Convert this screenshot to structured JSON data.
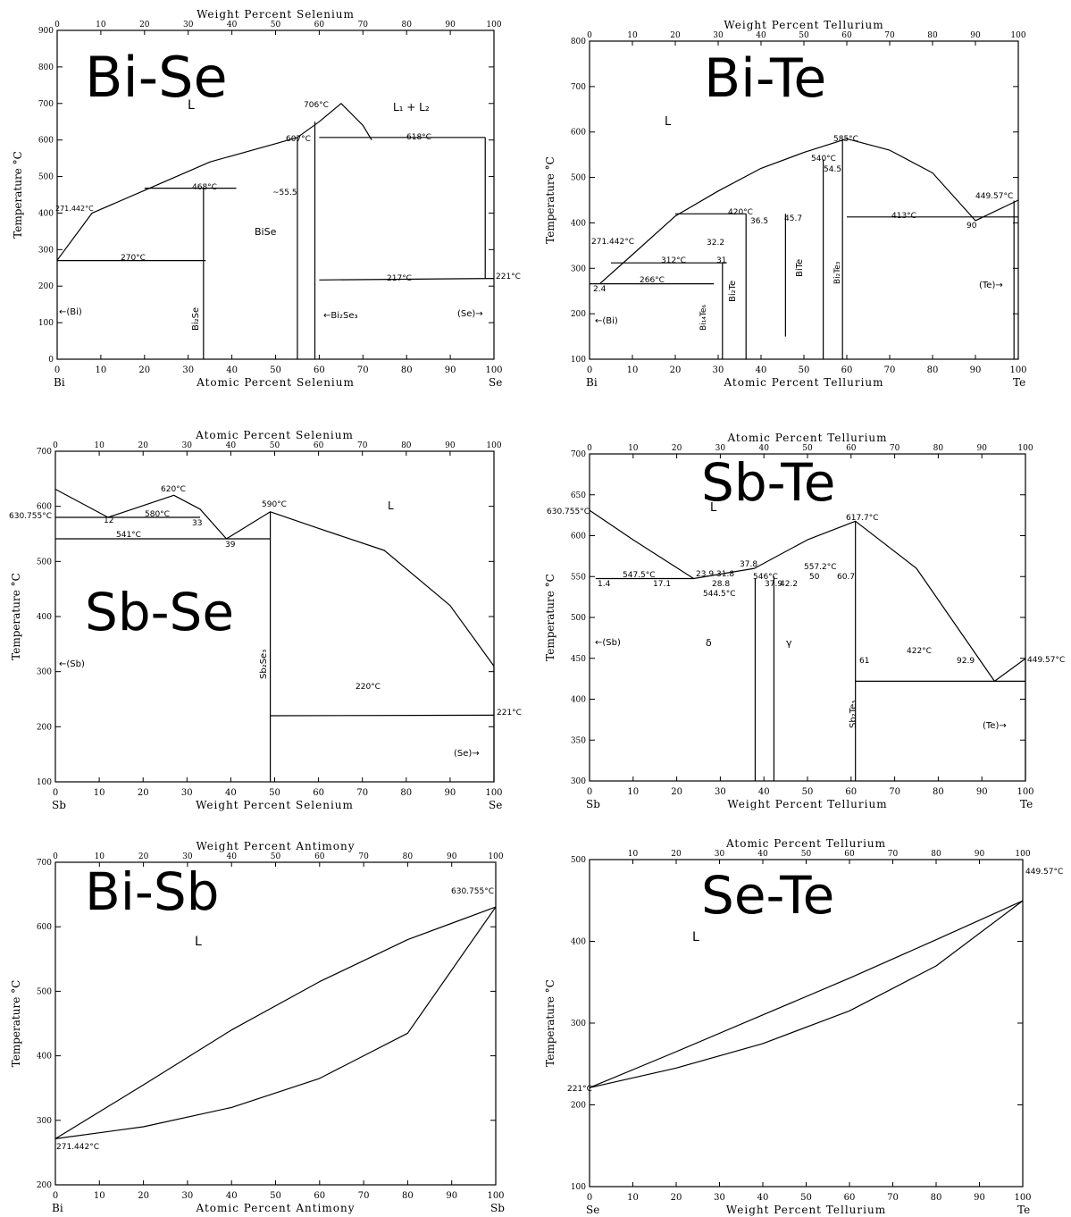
{
  "charts": [
    {
      "id": "bise",
      "title": "Bi-Se",
      "bottom_axis": {
        "label": "Atomic Percent Selenium",
        "ticks": [
          "0",
          "10",
          "20",
          "30",
          "40",
          "50",
          "60",
          "70",
          "80",
          "90",
          "100"
        ]
      },
      "top_axis": {
        "label": "Weight Percent Selenium",
        "ticks": [
          "0",
          "10",
          "20",
          "30",
          "40",
          "50",
          "60",
          "70",
          "80",
          "90",
          "100"
        ]
      },
      "y_label": "Temperature °C",
      "y_ticks": [
        "0",
        "100",
        "200",
        "300",
        "400",
        "500",
        "600",
        "700",
        "800",
        "900"
      ],
      "left_element": "Bi",
      "right_element": "Se",
      "annotations": [
        "L",
        "L₁ + L₂",
        "706°C",
        "607°C",
        "618°C",
        "468°C",
        "~55.5",
        "271.442°C",
        "270°C",
        "217°C",
        "221°C",
        "BiSe",
        "Bi₂Se",
        "←Bi₂Se₃",
        "(Se)→",
        "←(Bi)"
      ]
    },
    {
      "id": "bite",
      "title": "Bi-Te",
      "bottom_axis": {
        "label": "Atomic Percent Tellurium",
        "ticks": [
          "0",
          "10",
          "20",
          "30",
          "40",
          "50",
          "60",
          "70",
          "80",
          "90",
          "100"
        ]
      },
      "top_axis": {
        "label": "Weight Percent Tellurium",
        "ticks": [
          "0",
          "10",
          "20",
          "30",
          "40",
          "50",
          "60",
          "70",
          "80",
          "90",
          "100"
        ]
      },
      "y_label": "Temperature °C",
      "y_ticks": [
        "100",
        "200",
        "300",
        "400",
        "500",
        "600",
        "700",
        "800"
      ],
      "left_element": "Bi",
      "right_element": "Te",
      "annotations": [
        "L",
        "585°C",
        "540°C",
        "54.5",
        "420°C",
        "36.5",
        "45.7",
        "413°C",
        "90",
        "449.57°C",
        "271.442°C",
        "312°C",
        "32.2",
        "31",
        "266°C",
        "2.4",
        "BiTe",
        "Bi₂Te₃",
        "Bi₂Te",
        "Bi₁₄Te₆",
        "(Te)→",
        "←(Bi)"
      ]
    },
    {
      "id": "sbse",
      "title": "Sb-Se",
      "bottom_axis": {
        "label": "Weight Percent Selenium",
        "ticks": [
          "0",
          "10",
          "20",
          "30",
          "40",
          "50",
          "60",
          "70",
          "80",
          "90",
          "100"
        ]
      },
      "top_axis": {
        "label": "Atomic Percent Selenium",
        "ticks": [
          "0",
          "10",
          "20",
          "30",
          "40",
          "50",
          "60",
          "70",
          "80",
          "90",
          "100"
        ]
      },
      "y_label": "Temperature °C",
      "y_ticks": [
        "100",
        "200",
        "300",
        "400",
        "500",
        "600",
        "700"
      ],
      "left_element": "Sb",
      "right_element": "Se",
      "annotations": [
        "L",
        "630.755°C",
        "620°C",
        "580°C",
        "541°C",
        "12",
        "33",
        "39",
        "590°C",
        "220°C",
        "221°C",
        "Sb₂Se₃",
        "←(Sb)",
        "(Se)→"
      ]
    },
    {
      "id": "sbte",
      "title": "Sb-Te",
      "bottom_axis": {
        "label": "Weight Percent Tellurium",
        "ticks": [
          "0",
          "10",
          "20",
          "30",
          "40",
          "50",
          "60",
          "70",
          "80",
          "90",
          "100"
        ]
      },
      "top_axis": {
        "label": "Atomic Percent Tellurium",
        "ticks": [
          "0",
          "10",
          "20",
          "30",
          "40",
          "50",
          "60",
          "70",
          "80",
          "90",
          "100"
        ]
      },
      "y_label": "Temperature °C",
      "y_ticks": [
        "300",
        "350",
        "400",
        "450",
        "500",
        "550",
        "600",
        "650",
        "700"
      ],
      "left_element": "Sb",
      "right_element": "Te",
      "annotations": [
        "L",
        "630.755°C",
        "617.7°C",
        "547.5°C",
        "23.9",
        "31.8",
        "37.8",
        "28.8",
        "544.5°C",
        "546°C",
        "557.2°C",
        "50",
        "60.7",
        "37.9",
        "42.2",
        "1.4",
        "17.1",
        "δ",
        "γ",
        "61",
        "422°C",
        "92.9",
        "449.57°C",
        "Sb₂Te₃",
        "←(Sb)",
        "(Te)→"
      ]
    },
    {
      "id": "bisb",
      "title": "Bi-Sb",
      "bottom_axis": {
        "label": "Atomic Percent Antimony",
        "ticks": [
          "0",
          "10",
          "20",
          "30",
          "40",
          "50",
          "60",
          "70",
          "80",
          "90",
          "100"
        ]
      },
      "top_axis": {
        "label": "Weight Percent Antimony",
        "ticks": [
          "0",
          "10",
          "20",
          "30",
          "40",
          "50",
          "60",
          "70",
          "80",
          "90",
          "100"
        ]
      },
      "y_label": "Temperature °C",
      "y_ticks": [
        "200",
        "300",
        "400",
        "500",
        "600",
        "700"
      ],
      "left_element": "Bi",
      "right_element": "Sb",
      "annotations": [
        "L",
        "630.755°C",
        "271.442°C"
      ]
    },
    {
      "id": "sete",
      "title": "Se-Te",
      "bottom_axis": {
        "label": "Weight Percent Tellurium",
        "ticks": [
          "0",
          "10",
          "20",
          "30",
          "40",
          "50",
          "60",
          "70",
          "80",
          "90",
          "100"
        ]
      },
      "top_axis": {
        "label": "Atomic Percent Tellurium",
        "ticks": [
          "10",
          "20",
          "30",
          "40",
          "50",
          "60",
          "70",
          "80",
          "90",
          "100"
        ]
      },
      "y_label": "Temperature °C",
      "y_ticks": [
        "100",
        "200",
        "300",
        "400",
        "500"
      ],
      "left_element": "Se",
      "right_element": "Te",
      "annotations": [
        "L",
        "449.57°C",
        "221°C"
      ]
    }
  ],
  "chart_data": [
    {
      "type": "line",
      "title": "Bi-Se",
      "xlabel": "Atomic Percent Selenium",
      "ylabel": "Temperature °C",
      "xlim": [
        0,
        100
      ],
      "ylim": [
        0,
        900
      ],
      "series": [
        {
          "values": [
            [
              0,
              271
            ],
            [
              8,
              400
            ],
            [
              20,
              462
            ],
            [
              35,
              540
            ],
            [
              50,
              590
            ],
            [
              55,
              607
            ],
            [
              60,
              650
            ],
            [
              65,
              700
            ],
            [
              70,
              640
            ],
            [
              72,
              600
            ]
          ]
        },
        {
          "values": [
            [
              20,
              468
            ],
            [
              41,
              468
            ]
          ]
        },
        {
          "values": [
            [
              0,
              270
            ],
            [
              34,
              270
            ]
          ]
        },
        {
          "values": [
            [
              60,
              607
            ],
            [
              72,
              607
            ],
            [
              98,
              607
            ]
          ]
        },
        {
          "values": [
            [
              60,
              217
            ],
            [
              100,
              221
            ]
          ]
        }
      ]
    },
    {
      "type": "line",
      "title": "Bi-Te",
      "xlabel": "Atomic Percent Tellurium",
      "ylabel": "Temperature °C",
      "xlim": [
        0,
        100
      ],
      "ylim": [
        100,
        800
      ],
      "series": [
        {
          "values": [
            [
              2.4,
              266
            ],
            [
              10,
              330
            ],
            [
              20,
              415
            ],
            [
              30,
              470
            ],
            [
              40,
              520
            ],
            [
              50,
              555
            ],
            [
              60,
              585
            ],
            [
              70,
              560
            ],
            [
              80,
              510
            ],
            [
              90,
              405
            ],
            [
              100,
              450
            ]
          ]
        },
        {
          "values": [
            [
              20,
              420
            ],
            [
              36.5,
              420
            ]
          ]
        },
        {
          "values": [
            [
              5,
              312
            ],
            [
              32,
              312
            ]
          ]
        },
        {
          "values": [
            [
              0,
              266
            ],
            [
              29,
              266
            ]
          ]
        },
        {
          "values": [
            [
              60,
              413
            ],
            [
              100,
              413
            ]
          ]
        }
      ]
    },
    {
      "type": "line",
      "title": "Sb-Se",
      "xlabel": "Weight Percent Selenium",
      "ylabel": "Temperature °C",
      "xlim": [
        0,
        100
      ],
      "ylim": [
        100,
        700
      ],
      "series": [
        {
          "values": [
            [
              0,
              631
            ],
            [
              12,
              580
            ],
            [
              27,
              620
            ],
            [
              33,
              595
            ],
            [
              39,
              541
            ],
            [
              49,
              590
            ],
            [
              60,
              560
            ],
            [
              75,
              520
            ],
            [
              90,
              420
            ],
            [
              100,
              310
            ]
          ]
        },
        {
          "values": [
            [
              0,
              580
            ],
            [
              33,
              580
            ]
          ]
        },
        {
          "values": [
            [
              0,
              541
            ],
            [
              49,
              541
            ]
          ]
        },
        {
          "values": [
            [
              49,
              220
            ],
            [
              100,
              221
            ]
          ]
        }
      ]
    },
    {
      "type": "line",
      "title": "Sb-Te",
      "xlabel": "Weight Percent Tellurium",
      "ylabel": "Temperature °C",
      "xlim": [
        0,
        100
      ],
      "ylim": [
        300,
        700
      ],
      "series": [
        {
          "values": [
            [
              0,
              631
            ],
            [
              10,
              595
            ],
            [
              23.9,
              547.5
            ],
            [
              37.8,
              560
            ],
            [
              50,
              595
            ],
            [
              61,
              617.7
            ],
            [
              75,
              560
            ],
            [
              92.9,
              422
            ],
            [
              100,
              449.57
            ]
          ]
        },
        {
          "values": [
            [
              1.4,
              547.5
            ],
            [
              23.9,
              547.5
            ]
          ]
        },
        {
          "values": [
            [
              61,
              422
            ],
            [
              100,
              422
            ]
          ]
        }
      ]
    },
    {
      "type": "line",
      "title": "Bi-Sb",
      "xlabel": "Atomic Percent Antimony",
      "ylabel": "Temperature °C",
      "xlim": [
        0,
        100
      ],
      "ylim": [
        200,
        700
      ],
      "series": [
        {
          "name": "liquidus",
          "values": [
            [
              0,
              271.442
            ],
            [
              20,
              355
            ],
            [
              40,
              440
            ],
            [
              60,
              515
            ],
            [
              80,
              580
            ],
            [
              100,
              630.755
            ]
          ]
        },
        {
          "name": "solidus",
          "values": [
            [
              0,
              271.442
            ],
            [
              20,
              290
            ],
            [
              40,
              320
            ],
            [
              60,
              365
            ],
            [
              80,
              435
            ],
            [
              100,
              630.755
            ]
          ]
        }
      ]
    },
    {
      "type": "line",
      "title": "Se-Te",
      "xlabel": "Weight Percent Tellurium",
      "ylabel": "Temperature °C",
      "xlim": [
        0,
        100
      ],
      "ylim": [
        100,
        500
      ],
      "series": [
        {
          "name": "liquidus",
          "values": [
            [
              0,
              221
            ],
            [
              20,
              265
            ],
            [
              40,
              310
            ],
            [
              60,
              355
            ],
            [
              80,
              402
            ],
            [
              100,
              449.57
            ]
          ]
        },
        {
          "name": "solidus",
          "values": [
            [
              0,
              221
            ],
            [
              20,
              245
            ],
            [
              40,
              275
            ],
            [
              60,
              315
            ],
            [
              80,
              370
            ],
            [
              100,
              449.57
            ]
          ]
        }
      ]
    }
  ]
}
